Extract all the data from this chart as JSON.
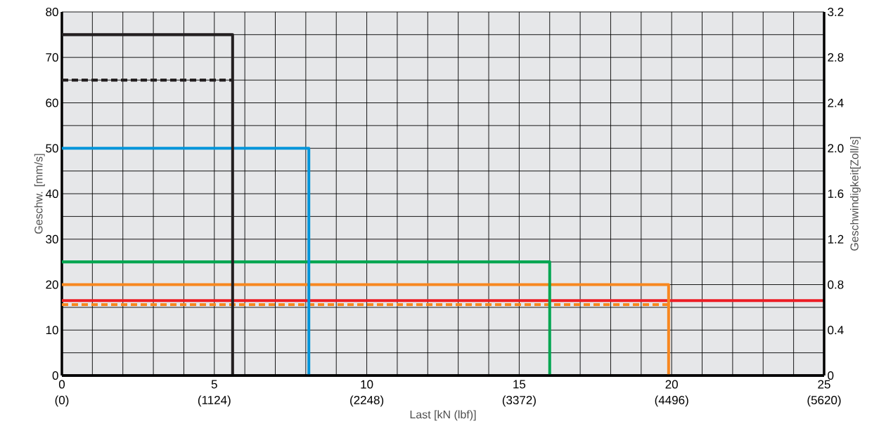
{
  "chart_data": {
    "type": "line",
    "xlabel": "Last [kN (lbf)]",
    "ylabel": "Geschw. [mm/s]",
    "y2label": "Geschwindigkeit[Zoll/s]",
    "xlim": [
      0,
      25
    ],
    "ylim": [
      0,
      80
    ],
    "y2lim": [
      0,
      3.2
    ],
    "x2lim": [
      0,
      5620
    ],
    "xticks": [
      0,
      {
        "value": 1,
        "label": null
      },
      {
        "value": 2,
        "label": null
      },
      {
        "value": 3,
        "label": null
      },
      {
        "value": 4,
        "label": null
      },
      5,
      {
        "value": 6,
        "label": null
      },
      {
        "value": 7,
        "label": null
      },
      {
        "value": 8,
        "label": null
      },
      {
        "value": 9,
        "label": null
      },
      10,
      {
        "value": 11,
        "label": null
      },
      {
        "value": 12,
        "label": null
      },
      {
        "value": 13,
        "label": null
      },
      {
        "value": 14,
        "label": null
      },
      15,
      {
        "value": 16,
        "label": null
      },
      {
        "value": 17,
        "label": null
      },
      {
        "value": 18,
        "label": null
      },
      {
        "value": 19,
        "label": null
      },
      20,
      {
        "value": 21,
        "label": null
      },
      {
        "value": 22,
        "label": null
      },
      {
        "value": 23,
        "label": null
      },
      {
        "value": 24,
        "label": null
      },
      25
    ],
    "x2ticks": [
      {
        "value": 0,
        "label": "(0)"
      },
      {
        "value": 1124,
        "label": "(1124)"
      },
      {
        "value": 2248,
        "label": "(2248)"
      },
      {
        "value": 3372,
        "label": "(3372)"
      },
      {
        "value": 4496,
        "label": "(4496)"
      },
      {
        "value": 5620,
        "label": "(5620)"
      }
    ],
    "yticks": [
      0,
      {
        "value": 5,
        "label": null
      },
      10,
      {
        "value": 15,
        "label": null
      },
      20,
      {
        "value": 25,
        "label": null
      },
      30,
      {
        "value": 35,
        "label": null
      },
      40,
      {
        "value": 45,
        "label": null
      },
      50,
      {
        "value": 55,
        "label": null
      },
      60,
      {
        "value": 65,
        "label": null
      },
      70,
      {
        "value": 75,
        "label": null
      },
      80
    ],
    "y2ticks": [
      0,
      0.4,
      0.8,
      1.2,
      1.6,
      {
        "value": 2,
        "label": "2.0"
      },
      2.4,
      2.8,
      3.2
    ],
    "grid": true,
    "marker": "none",
    "series": [
      {
        "color": "#f7871f",
        "line_style": "dashed",
        "x": [
          0,
          19.9
        ],
        "values": [
          15.6,
          15.6
        ]
      },
      {
        "color": "#ed1c24",
        "x": [
          0,
          25
        ],
        "values": [
          16.5,
          16.5
        ]
      },
      {
        "color": "#f7871f",
        "x": [
          0,
          19.9,
          19.9
        ],
        "values": [
          20,
          20,
          0
        ]
      },
      {
        "color": "#00a651",
        "x": [
          0,
          16,
          16
        ],
        "values": [
          25,
          25,
          0
        ]
      },
      {
        "color": "#0095da",
        "x": [
          0,
          8.1,
          8.1
        ],
        "values": [
          50,
          50,
          0
        ]
      },
      {
        "color": "#231f20",
        "line_style": "dashed",
        "x": [
          0,
          5.6
        ],
        "values": [
          65,
          65
        ]
      },
      {
        "color": "#231f20",
        "x": [
          0,
          5.6,
          5.6
        ],
        "values": [
          75,
          75,
          0
        ]
      }
    ]
  }
}
